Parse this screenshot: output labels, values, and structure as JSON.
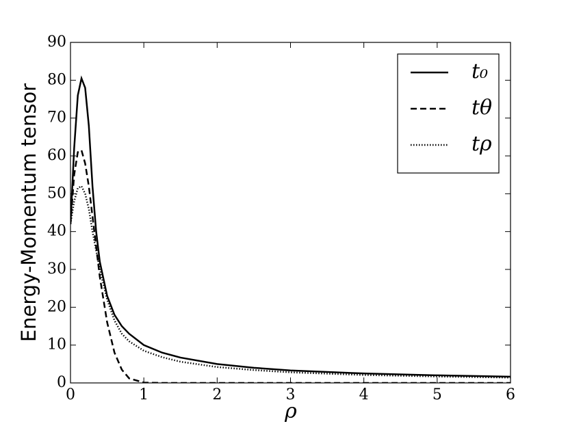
{
  "chart_data": {
    "type": "line",
    "x_label": "ρ",
    "y_label": "Energy-Momentum tensor",
    "x": [
      0,
      0.05,
      0.1,
      0.15,
      0.2,
      0.25,
      0.3,
      0.35,
      0.4,
      0.5,
      0.6,
      0.7,
      0.8,
      1,
      1.25,
      1.5,
      2,
      2.5,
      3,
      4,
      5,
      6
    ],
    "series": [
      {
        "name": "t₀",
        "color": "#000000",
        "style": "solid",
        "values": [
          42,
          62,
          76,
          80.5,
          78,
          68,
          52,
          40,
          32,
          23,
          18,
          15,
          13,
          10,
          8,
          6.7,
          5,
          4,
          3.3,
          2.5,
          2,
          1.65
        ]
      },
      {
        "name": "tθ",
        "color": "#000000",
        "style": "dashed",
        "values": [
          42,
          55,
          61,
          61.5,
          58,
          52,
          44,
          36,
          28,
          16,
          8,
          3.5,
          1.2,
          0.1,
          0,
          0,
          0,
          0,
          0,
          0,
          0,
          0
        ]
      },
      {
        "name": "tρ",
        "color": "#000000",
        "style": "dotted",
        "values": [
          42,
          48,
          51.5,
          52,
          50,
          46,
          40,
          35,
          30,
          22,
          16.5,
          13,
          11,
          8.5,
          6.8,
          5.6,
          4.2,
          3.4,
          2.8,
          2.1,
          1.7,
          1.4
        ]
      }
    ],
    "xlim": [
      0,
      6
    ],
    "xticks": [
      0,
      1,
      2,
      3,
      4,
      5,
      6
    ],
    "ylim": [
      0,
      90
    ],
    "yticks": [
      0,
      10,
      20,
      30,
      40,
      50,
      60,
      70,
      80,
      90
    ],
    "grid": false,
    "legend": "upper right"
  }
}
